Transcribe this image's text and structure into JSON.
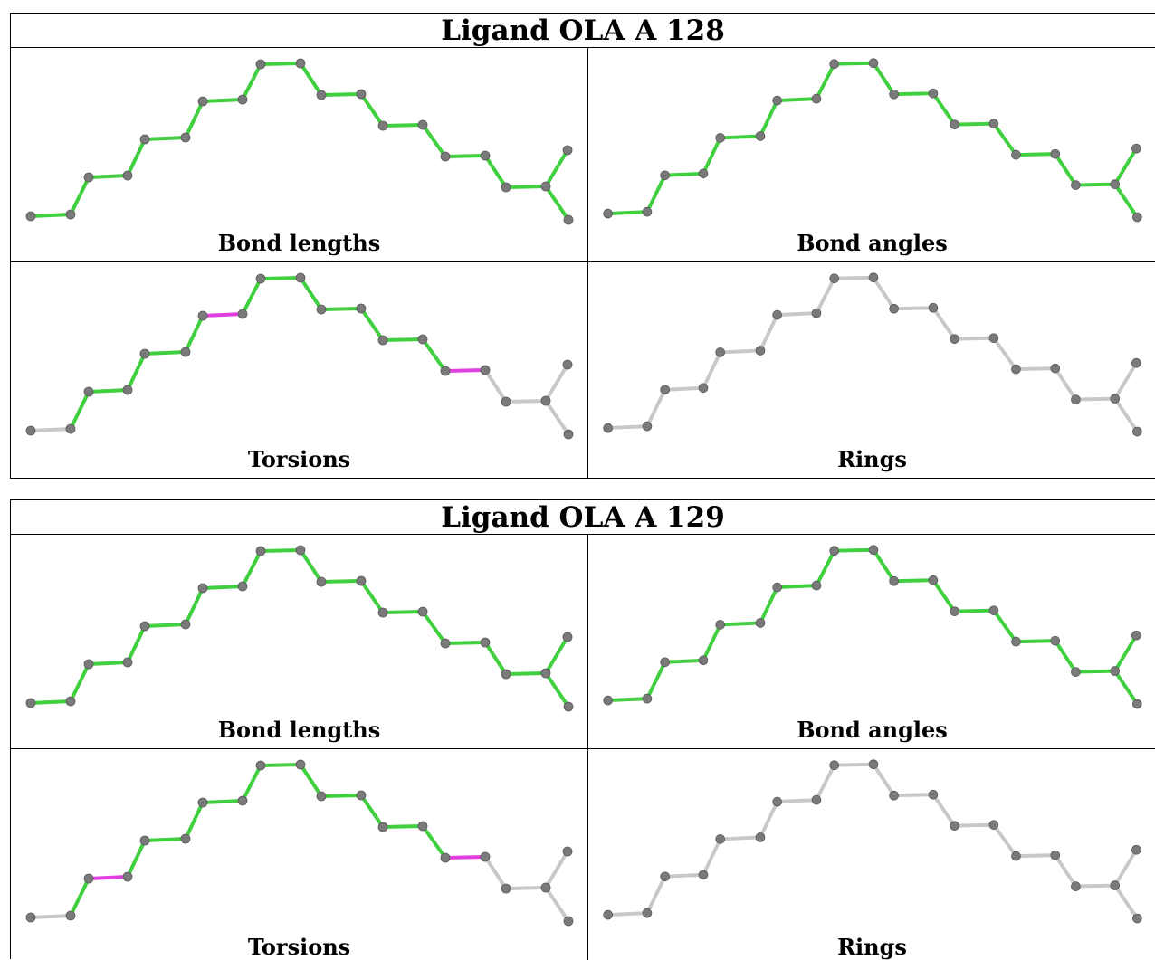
{
  "blocks": [
    {
      "title": "Ligand OLA A 128",
      "panels": [
        {
          "label": "Bond lengths",
          "bonds": [
            "g",
            "g",
            "g",
            "g",
            "g",
            "g",
            "g",
            "g",
            "g",
            "g",
            "g",
            "g",
            "g",
            "g",
            "g",
            "g",
            "g"
          ]
        },
        {
          "label": "Bond angles",
          "bonds": [
            "g",
            "g",
            "g",
            "g",
            "g",
            "g",
            "g",
            "g",
            "g",
            "g",
            "g",
            "g",
            "g",
            "g",
            "g",
            "g",
            "g"
          ]
        },
        {
          "label": "Torsions",
          "bonds": [
            "s",
            "g",
            "g",
            "g",
            "g",
            "g",
            "m",
            "g",
            "g",
            "g",
            "g",
            "g",
            "g",
            "g",
            "m",
            "s",
            "s"
          ]
        },
        {
          "label": "Rings",
          "bonds": [
            "s",
            "s",
            "s",
            "s",
            "s",
            "s",
            "s",
            "s",
            "s",
            "s",
            "s",
            "s",
            "s",
            "s",
            "s",
            "s",
            "s"
          ]
        }
      ]
    },
    {
      "title": "Ligand OLA A 129",
      "panels": [
        {
          "label": "Bond lengths",
          "bonds": [
            "g",
            "g",
            "g",
            "g",
            "g",
            "g",
            "g",
            "g",
            "g",
            "g",
            "g",
            "g",
            "g",
            "g",
            "g",
            "g",
            "g"
          ]
        },
        {
          "label": "Bond angles",
          "bonds": [
            "g",
            "g",
            "g",
            "g",
            "g",
            "g",
            "g",
            "g",
            "g",
            "g",
            "g",
            "g",
            "g",
            "g",
            "g",
            "g",
            "g"
          ]
        },
        {
          "label": "Torsions",
          "bonds": [
            "s",
            "g",
            "m",
            "g",
            "g",
            "g",
            "g",
            "g",
            "g",
            "g",
            "g",
            "g",
            "g",
            "g",
            "m",
            "s",
            "s"
          ]
        },
        {
          "label": "Rings",
          "bonds": [
            "s",
            "s",
            "s",
            "s",
            "s",
            "s",
            "s",
            "s",
            "s",
            "s",
            "s",
            "s",
            "s",
            "s",
            "s",
            "s",
            "s"
          ]
        }
      ]
    }
  ],
  "colors": {
    "ok_bond": "#3fcf3f",
    "outlier_bond": "#e040e0",
    "neutral_bond": "#c8c8c8",
    "atom": "#7a7a7a"
  }
}
